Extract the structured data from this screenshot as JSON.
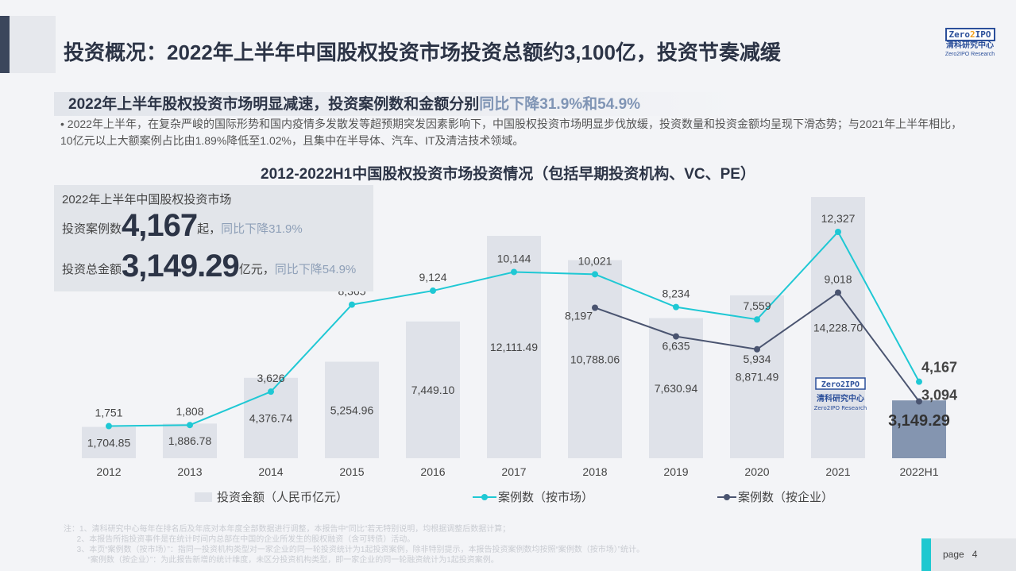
{
  "header": {
    "title": "投资概况：2022年上半年中国股权投资市场投资总额约3,100亿，投资节奏减缓"
  },
  "logo": {
    "top_left": "Zero",
    "digit": "2",
    "top_right": "IPO",
    "cn": "清科研究中心",
    "en": "Zero2IPO Research"
  },
  "subtitle": {
    "main": "2022年上半年股权投资市场明显减速，投资案例数和金额分别",
    "highlight": "同比下降31.9%和54.9%"
  },
  "bullet": "2022年上半年，在复杂严峻的国际形势和国内疫情多发散发等超预期突发因素影响下，中国股权投资市场明显步伐放缓，投资数量和投资金额均呈现下滑态势；与2021年上半年相比，10亿元以上大额案例占比由1.89%降低至1.02%，且集中在半导体、汽车、IT及清洁技术领域。",
  "stats": {
    "heading": "2022年上半年中国股权投资市场",
    "cases_label": "投资案例数",
    "cases_value": "4,167",
    "cases_unit": "起，",
    "cases_change": "同比下降31.9%",
    "amount_label": "投资总金额",
    "amount_value": "3,149.29",
    "amount_unit": "亿元，",
    "amount_change": "同比下降54.9%"
  },
  "chart_data": {
    "type": "bar",
    "title": "2012-2022H1中国股权投资市场投资情况（包括早期投资机构、VC、PE）",
    "categories": [
      "2012",
      "2013",
      "2014",
      "2015",
      "2016",
      "2017",
      "2018",
      "2019",
      "2020",
      "2021",
      "2022H1"
    ],
    "series": [
      {
        "name": "投资金额（人民币亿元）",
        "type": "bar",
        "values": [
          1704.85,
          1886.78,
          4376.74,
          5254.96,
          7449.1,
          12111.49,
          10788.06,
          7630.94,
          8871.49,
          14228.7,
          3149.29
        ],
        "labels": [
          "1,704.85",
          "1,886.78",
          "4,376.74",
          "5,254.96",
          "7,449.10",
          "12,111.49",
          "10,788.06",
          "7,630.94",
          "8,871.49",
          "14,228.70",
          "3,149.29"
        ],
        "color": "#dfe2e9",
        "highlight_color": "#8495b0"
      },
      {
        "name": "案例数（按市场）",
        "type": "line",
        "values": [
          1751,
          1808,
          3626,
          8365,
          9124,
          10144,
          10021,
          8234,
          7559,
          12327,
          4167
        ],
        "labels": [
          "1,751",
          "1,808",
          "3,626",
          "8,365",
          "9,124",
          "10,144",
          "10,021",
          "8,234",
          "7,559",
          "12,327",
          "4,167"
        ],
        "color": "#1fc8d4"
      },
      {
        "name": "案例数（按企业）",
        "type": "line",
        "values": [
          null,
          null,
          null,
          null,
          null,
          null,
          8197,
          6635,
          5934,
          9018,
          3094
        ],
        "labels": [
          null,
          null,
          null,
          null,
          null,
          null,
          "8,197",
          "6,635",
          "5,934",
          "9,018",
          "3,094"
        ],
        "color": "#4a5470"
      }
    ],
    "ylim": [
      0,
      14500
    ],
    "legend": "bottom"
  },
  "footnote": "注：1、清科研究中心每年在排名后及年底对本年度全部数据进行调整，本报告中“同比”若无特别说明，均根据调整后数据计算；\n      2、本报告所指投资事件是在统计时间内总部在中国的企业所发生的股权融资（含可转债）活动。\n      3、本页“案例数（按市场）”：指同一投资机构类型对一家企业的同一轮投资统计为1起投资案例，除非特别提示，本报告投资案例数均按照“案例数（按市场）”统计。\n           “案例数（按企业）”：为此报告新增的统计维度，未区分投资机构类型，即一家企业的同一轮融资统计为1起投资案例。",
  "page": {
    "label": "page",
    "number": "4"
  }
}
